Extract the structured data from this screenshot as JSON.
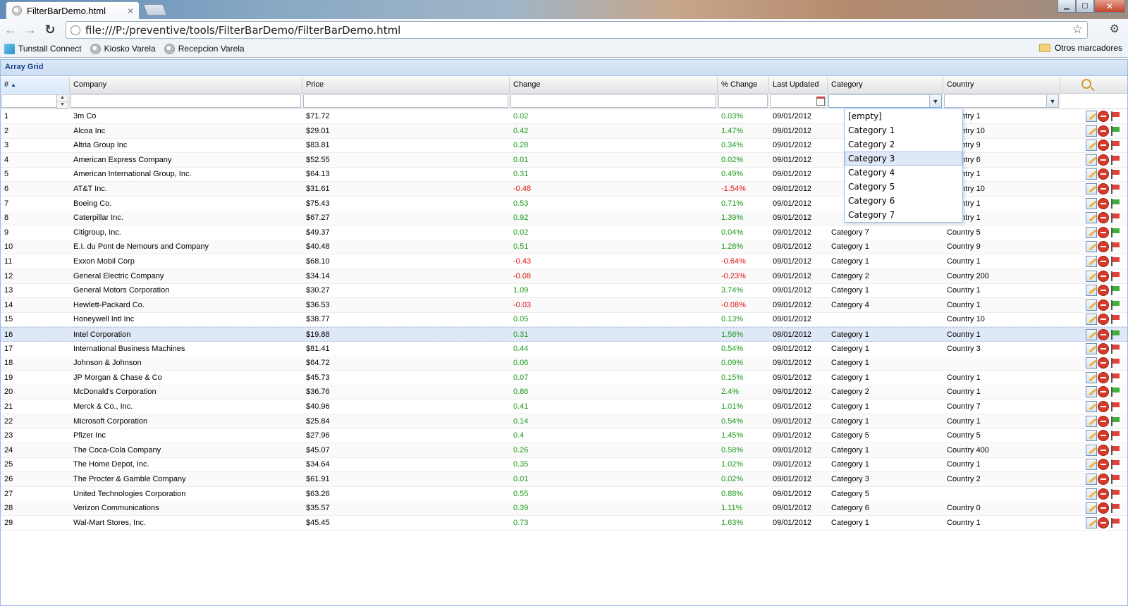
{
  "browser": {
    "tab_title": "FilterBarDemo.html",
    "tab_close": "×",
    "url": "file:///P:/preventive/tools/FilterBarDemo/FilterBarDemo.html",
    "back": "←",
    "forward": "→",
    "reload": "↻",
    "star": "☆",
    "wrench": "🔧",
    "minimize": "▁",
    "maximize": "▢",
    "close": "✕",
    "bookmarks": [
      "Tunstall Connect",
      "Kiosko Varela",
      "Recepcion Varela"
    ],
    "other_bookmarks": "Otros marcadores"
  },
  "panel": {
    "title": "Array Grid"
  },
  "columns": {
    "num": "#",
    "company": "Company",
    "price": "Price",
    "change": "Change",
    "pct_change": "% Change",
    "last_updated": "Last Updated",
    "category": "Category",
    "country": "Country"
  },
  "dropdown": {
    "options": [
      "[empty]",
      "Category 1",
      "Category 2",
      "Category 3",
      "Category 4",
      "Category 5",
      "Category 6",
      "Category 7"
    ],
    "hovered": "Category 3"
  },
  "rows": [
    {
      "num": "1",
      "company": "3m Co",
      "price": "$71.72",
      "change": "0.02",
      "pct": "0.03%",
      "date": "09/01/2012",
      "category": "",
      "country": "Country 1",
      "flag": "red"
    },
    {
      "num": "2",
      "company": "Alcoa Inc",
      "price": "$29.01",
      "change": "0.42",
      "pct": "1.47%",
      "date": "09/01/2012",
      "category": "",
      "country": "Country 10",
      "flag": "green"
    },
    {
      "num": "3",
      "company": "Altria Group Inc",
      "price": "$83.81",
      "change": "0.28",
      "pct": "0.34%",
      "date": "09/01/2012",
      "category": "",
      "country": "Country 9",
      "flag": "red"
    },
    {
      "num": "4",
      "company": "American Express Company",
      "price": "$52.55",
      "change": "0.01",
      "pct": "0.02%",
      "date": "09/01/2012",
      "category": "",
      "country": "Country 6",
      "flag": "red"
    },
    {
      "num": "5",
      "company": "American International Group, Inc.",
      "price": "$64.13",
      "change": "0.31",
      "pct": "0.49%",
      "date": "09/01/2012",
      "category": "",
      "country": "Country 1",
      "flag": "red"
    },
    {
      "num": "6",
      "company": "AT&T Inc.",
      "price": "$31.61",
      "change": "-0.48",
      "pct": "-1.54%",
      "date": "09/01/2012",
      "category": "",
      "country": "Country 10",
      "flag": "red"
    },
    {
      "num": "7",
      "company": "Boeing Co.",
      "price": "$75.43",
      "change": "0.53",
      "pct": "0.71%",
      "date": "09/01/2012",
      "category": "",
      "country": "Country 1",
      "flag": "green"
    },
    {
      "num": "8",
      "company": "Caterpillar Inc.",
      "price": "$67.27",
      "change": "0.92",
      "pct": "1.39%",
      "date": "09/01/2012",
      "category": "",
      "country": "Country 1",
      "flag": "red"
    },
    {
      "num": "9",
      "company": "Citigroup, Inc.",
      "price": "$49.37",
      "change": "0.02",
      "pct": "0.04%",
      "date": "09/01/2012",
      "category": "Category 7",
      "country": "Country 5",
      "flag": "green"
    },
    {
      "num": "10",
      "company": "E.I. du Pont de Nemours and Company",
      "price": "$40.48",
      "change": "0.51",
      "pct": "1.28%",
      "date": "09/01/2012",
      "category": "Category 1",
      "country": "Country 9",
      "flag": "red"
    },
    {
      "num": "11",
      "company": "Exxon Mobil Corp",
      "price": "$68.10",
      "change": "-0.43",
      "pct": "-0.64%",
      "date": "09/01/2012",
      "category": "Category 1",
      "country": "Country 1",
      "flag": "red"
    },
    {
      "num": "12",
      "company": "General Electric Company",
      "price": "$34.14",
      "change": "-0.08",
      "pct": "-0.23%",
      "date": "09/01/2012",
      "category": "Category 2",
      "country": "Country 200",
      "flag": "red"
    },
    {
      "num": "13",
      "company": "General Motors Corporation",
      "price": "$30.27",
      "change": "1.09",
      "pct": "3.74%",
      "date": "09/01/2012",
      "category": "Category 1",
      "country": "Country 1",
      "flag": "green"
    },
    {
      "num": "14",
      "company": "Hewlett-Packard Co.",
      "price": "$36.53",
      "change": "-0.03",
      "pct": "-0.08%",
      "date": "09/01/2012",
      "category": "Category 4",
      "country": "Country 1",
      "flag": "green"
    },
    {
      "num": "15",
      "company": "Honeywell Intl Inc",
      "price": "$38.77",
      "change": "0.05",
      "pct": "0.13%",
      "date": "09/01/2012",
      "category": "",
      "country": "Country 10",
      "flag": "red"
    },
    {
      "num": "16",
      "company": "Intel Corporation",
      "price": "$19.88",
      "change": "0.31",
      "pct": "1.58%",
      "date": "09/01/2012",
      "category": "Category 1",
      "country": "Country 1",
      "flag": "green",
      "selected": true
    },
    {
      "num": "17",
      "company": "International Business Machines",
      "price": "$81.41",
      "change": "0.44",
      "pct": "0.54%",
      "date": "09/01/2012",
      "category": "Category 1",
      "country": "Country 3",
      "flag": "red"
    },
    {
      "num": "18",
      "company": "Johnson & Johnson",
      "price": "$64.72",
      "change": "0.06",
      "pct": "0.09%",
      "date": "09/01/2012",
      "category": "Category 1",
      "country": "",
      "flag": "red"
    },
    {
      "num": "19",
      "company": "JP Morgan & Chase & Co",
      "price": "$45.73",
      "change": "0.07",
      "pct": "0.15%",
      "date": "09/01/2012",
      "category": "Category 1",
      "country": "Country 1",
      "flag": "red"
    },
    {
      "num": "20",
      "company": "McDonald's Corporation",
      "price": "$36.76",
      "change": "0.86",
      "pct": "2.4%",
      "date": "09/01/2012",
      "category": "Category 2",
      "country": "Country 1",
      "flag": "green"
    },
    {
      "num": "21",
      "company": "Merck & Co., Inc.",
      "price": "$40.96",
      "change": "0.41",
      "pct": "1.01%",
      "date": "09/01/2012",
      "category": "Category 1",
      "country": "Country 7",
      "flag": "red"
    },
    {
      "num": "22",
      "company": "Microsoft Corporation",
      "price": "$25.84",
      "change": "0.14",
      "pct": "0.54%",
      "date": "09/01/2012",
      "category": "Category 1",
      "country": "Country 1",
      "flag": "green"
    },
    {
      "num": "23",
      "company": "Pfizer Inc",
      "price": "$27.96",
      "change": "0.4",
      "pct": "1.45%",
      "date": "09/01/2012",
      "category": "Category 5",
      "country": "Country 5",
      "flag": "red"
    },
    {
      "num": "24",
      "company": "The Coca-Cola Company",
      "price": "$45.07",
      "change": "0.26",
      "pct": "0.58%",
      "date": "09/01/2012",
      "category": "Category 1",
      "country": "Country 400",
      "flag": "red"
    },
    {
      "num": "25",
      "company": "The Home Depot, Inc.",
      "price": "$34.64",
      "change": "0.35",
      "pct": "1.02%",
      "date": "09/01/2012",
      "category": "Category 1",
      "country": "Country 1",
      "flag": "red"
    },
    {
      "num": "26",
      "company": "The Procter & Gamble Company",
      "price": "$61.91",
      "change": "0.01",
      "pct": "0.02%",
      "date": "09/01/2012",
      "category": "Category 3",
      "country": "Country 2",
      "flag": "red"
    },
    {
      "num": "27",
      "company": "United Technologies Corporation",
      "price": "$63.26",
      "change": "0.55",
      "pct": "0.88%",
      "date": "09/01/2012",
      "category": "Category 5",
      "country": "",
      "flag": "red"
    },
    {
      "num": "28",
      "company": "Verizon Communications",
      "price": "$35.57",
      "change": "0.39",
      "pct": "1.11%",
      "date": "09/01/2012",
      "category": "Category 6",
      "country": "Country 0",
      "flag": "red"
    },
    {
      "num": "29",
      "company": "Wal-Mart Stores, Inc.",
      "price": "$45.45",
      "change": "0.73",
      "pct": "1.63%",
      "date": "09/01/2012",
      "category": "Category 1",
      "country": "Country 1",
      "flag": "red"
    }
  ],
  "colors": {
    "positive": "#1c9a1c",
    "negative": "#e01212",
    "panel_title": "#15428b"
  }
}
